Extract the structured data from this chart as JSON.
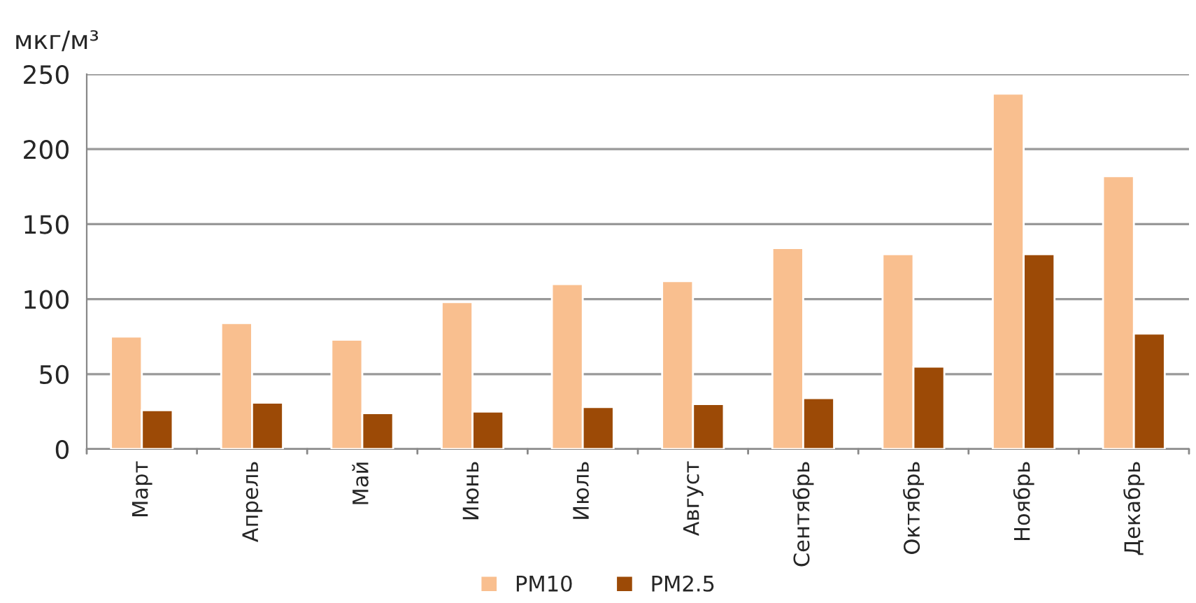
{
  "chart_data": {
    "type": "bar",
    "ylabel": "мкг/м³",
    "categories": [
      "Март",
      "Апрель",
      "Май",
      "Июнь",
      "Июль",
      "Август",
      "Сентябрь",
      "Октябрь",
      "Ноябрь",
      "Декабрь"
    ],
    "series": [
      {
        "name": "PM10",
        "color": "#f9bf8f",
        "values": [
          75,
          84,
          73,
          98,
          110,
          112,
          134,
          130,
          237,
          182
        ]
      },
      {
        "name": "PM2.5",
        "color": "#9c4a06",
        "values": [
          26,
          31,
          24,
          25,
          28,
          30,
          34,
          55,
          130,
          77
        ]
      }
    ],
    "ylim": [
      0,
      250
    ],
    "yticks": [
      0,
      50,
      100,
      150,
      200,
      250
    ],
    "grid": "y",
    "legend": "bottom"
  }
}
